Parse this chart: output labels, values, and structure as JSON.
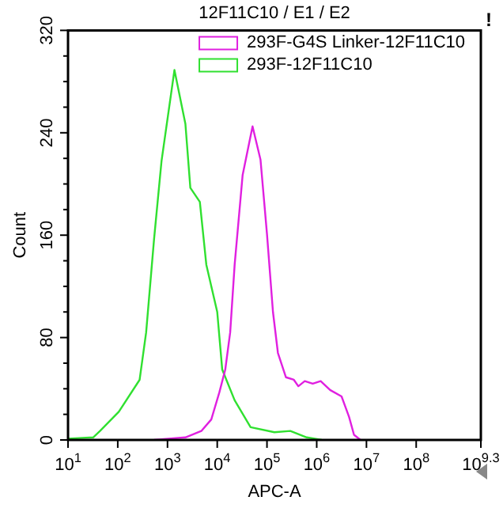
{
  "chart_data": {
    "type": "line",
    "title": "12F11C10 / E1 / E2",
    "xlabel": "APC-A",
    "ylabel": "Count",
    "log": "x",
    "legend": "top right",
    "grid": false,
    "marker": "none",
    "line_style": "solid",
    "xlim": [
      10,
      1995262315
    ],
    "xticks": [
      {
        "value": 10,
        "label": "10$^{1}$"
      },
      {
        "value": 100,
        "label": "10$^{2}$"
      },
      {
        "value": 1000,
        "label": "10$^{3}$"
      },
      {
        "value": 10000,
        "label": "10$^{4}$"
      },
      {
        "value": 100000,
        "label": "10$^{5}$"
      },
      {
        "value": 1000000,
        "label": "10$^{6}$"
      },
      {
        "value": 10000000,
        "label": "10$^{7}$"
      },
      {
        "value": 100000000,
        "label": "10$^{8}$"
      },
      {
        "value": 1995262315,
        "label": "10$^{9.3}$"
      }
    ],
    "ylim": [
      0,
      320
    ],
    "yticks": [
      0,
      {
        "value": 20,
        "label": null
      },
      {
        "value": 40,
        "label": null
      },
      {
        "value": 60,
        "label": null
      },
      80,
      {
        "value": 100,
        "label": null
      },
      {
        "value": 120,
        "label": null
      },
      {
        "value": 140,
        "label": null
      },
      160,
      {
        "value": 180,
        "label": null
      },
      {
        "value": 200,
        "label": null
      },
      {
        "value": 220,
        "label": null
      },
      240,
      {
        "value": 260,
        "label": null
      },
      {
        "value": 280,
        "label": null
      },
      {
        "value": 300,
        "label": null
      },
      320
    ],
    "annotations": [
      "!"
    ],
    "series": [
      {
        "name": "293F-G4S Linker-12F11C10",
        "color": "#e020e0",
        "x": [
          537,
          2290,
          4790,
          7590,
          11000,
          14500,
          18200,
          22400,
          32400,
          51300,
          74100,
          100000,
          132000,
          166000,
          240000,
          347000,
          427000,
          575000,
          832000,
          1200000,
          1860000,
          3160000,
          4470000,
          5620000,
          7590000
        ],
        "values": [
          0,
          2,
          7,
          16,
          37,
          55,
          84,
          137,
          207,
          245,
          219,
          161,
          100,
          68,
          49,
          47,
          42,
          46,
          44,
          46,
          39,
          34,
          18,
          4,
          0
        ]
      },
      {
        "name": "293F-12F11C10",
        "color": "#30e030",
        "x": [
          10,
          32,
          44,
          105,
          275,
          372,
          537,
          759,
          1380,
          2290,
          2880,
          4470,
          6030,
          10000,
          12600,
          22400,
          46800,
          141000,
          295000,
          631000,
          1260000
        ],
        "values": [
          1,
          2,
          7,
          22,
          47,
          84,
          157,
          218,
          289,
          247,
          197,
          186,
          137,
          100,
          55,
          31,
          10,
          6,
          7,
          2,
          0
        ]
      }
    ]
  }
}
